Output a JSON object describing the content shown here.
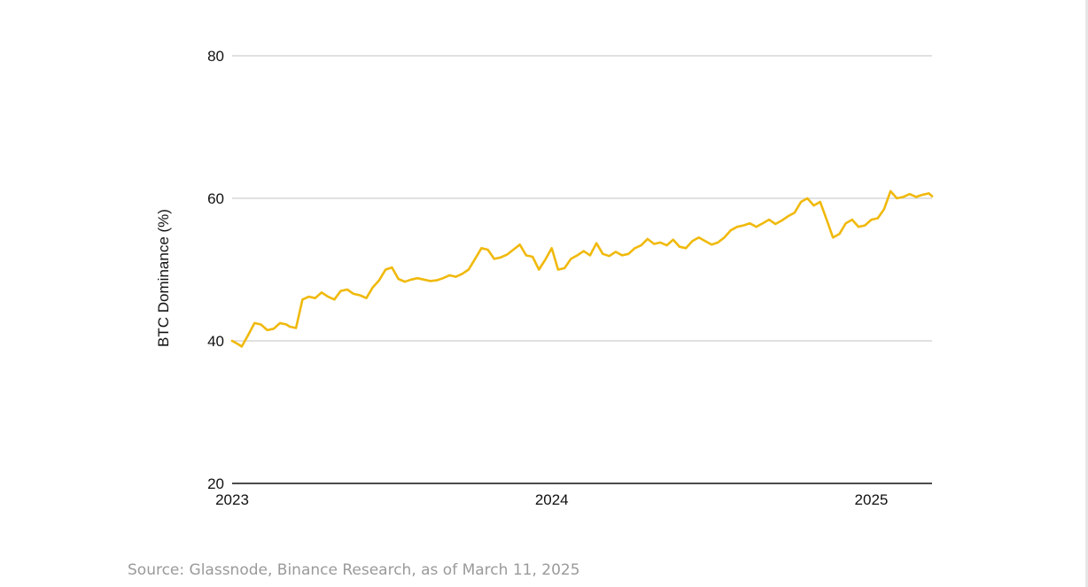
{
  "chart_data": {
    "type": "line",
    "ylabel": "BTC Dominance (%)",
    "xlabel": "",
    "ylim": [
      20,
      80
    ],
    "yticks": [
      80,
      60,
      40,
      20
    ],
    "xticks": [
      {
        "label": "2023",
        "value": 2023.0
      },
      {
        "label": "2024",
        "value": 2024.0
      },
      {
        "label": "2025",
        "value": 2025.0
      }
    ],
    "xlim": [
      2023.0,
      2025.19
    ],
    "grid": true,
    "series": [
      {
        "color": "#F0B90B",
        "x": [
          2023.0,
          2023.02,
          2023.03,
          2023.05,
          2023.07,
          2023.09,
          2023.11,
          2023.13,
          2023.15,
          2023.17,
          2023.18,
          2023.2,
          2023.22,
          2023.24,
          2023.26,
          2023.28,
          2023.3,
          2023.32,
          2023.34,
          2023.36,
          2023.38,
          2023.4,
          2023.42,
          2023.44,
          2023.46,
          2023.48,
          2023.5,
          2023.52,
          2023.54,
          2023.56,
          2023.58,
          2023.6,
          2023.62,
          2023.64,
          2023.66,
          2023.68,
          2023.7,
          2023.72,
          2023.74,
          2023.76,
          2023.78,
          2023.8,
          2023.82,
          2023.84,
          2023.86,
          2023.88,
          2023.9,
          2023.92,
          2023.94,
          2023.96,
          2023.98,
          2024.0,
          2024.02,
          2024.04,
          2024.06,
          2024.08,
          2024.1,
          2024.12,
          2024.14,
          2024.16,
          2024.18,
          2024.2,
          2024.22,
          2024.24,
          2024.26,
          2024.28,
          2024.3,
          2024.32,
          2024.34,
          2024.36,
          2024.38,
          2024.4,
          2024.42,
          2024.44,
          2024.46,
          2024.48,
          2024.5,
          2024.52,
          2024.54,
          2024.56,
          2024.58,
          2024.6,
          2024.62,
          2024.64,
          2024.66,
          2024.68,
          2024.7,
          2024.72,
          2024.74,
          2024.76,
          2024.78,
          2024.8,
          2024.82,
          2024.84,
          2024.86,
          2024.88,
          2024.9,
          2024.92,
          2024.94,
          2024.96,
          2024.98,
          2025.0,
          2025.02,
          2025.04,
          2025.06,
          2025.08,
          2025.1,
          2025.12,
          2025.14,
          2025.16,
          2025.18,
          2025.19
        ],
        "y": [
          40.0,
          39.5,
          39.2,
          40.8,
          42.5,
          42.3,
          41.5,
          41.7,
          42.5,
          42.3,
          42.0,
          41.8,
          45.8,
          46.2,
          46.0,
          46.8,
          46.2,
          45.8,
          47.0,
          47.2,
          46.6,
          46.4,
          46.0,
          47.5,
          48.5,
          50.0,
          50.3,
          48.7,
          48.3,
          48.6,
          48.8,
          48.6,
          48.4,
          48.5,
          48.8,
          49.2,
          49.0,
          49.4,
          50.0,
          51.5,
          53.0,
          52.8,
          51.5,
          51.7,
          52.1,
          52.8,
          53.5,
          52.0,
          51.8,
          50.0,
          51.4,
          53.0,
          50.0,
          50.2,
          51.5,
          52.0,
          52.6,
          52.0,
          53.7,
          52.2,
          51.9,
          52.5,
          52.0,
          52.2,
          53.0,
          53.4,
          54.3,
          53.6,
          53.8,
          53.4,
          54.2,
          53.2,
          53.0,
          54.0,
          54.5,
          54.0,
          53.5,
          53.8,
          54.5,
          55.5,
          56.0,
          56.2,
          56.5,
          56.0,
          56.5,
          57.0,
          56.4,
          56.9,
          57.5,
          58.0,
          59.5,
          60.0,
          59.0,
          59.5,
          57.0,
          54.5,
          55.0,
          56.5,
          57.0,
          56.0,
          56.2,
          57.0,
          57.2,
          58.5,
          61.0,
          60.0,
          60.2,
          60.6,
          60.2,
          60.5,
          60.7,
          60.3
        ]
      }
    ]
  },
  "source": "Source: Glassnode, Binance Research, as of March 11, 2025"
}
